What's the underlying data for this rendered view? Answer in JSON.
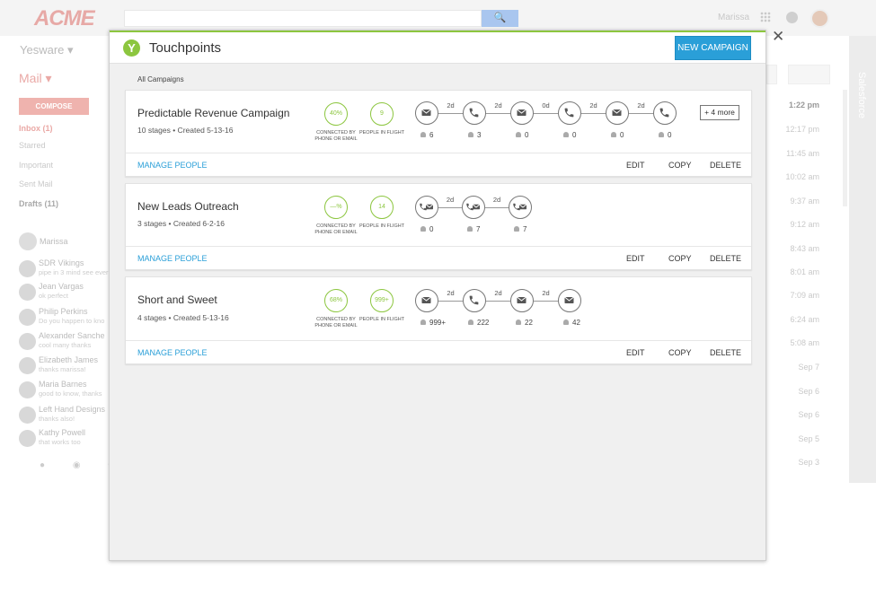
{
  "gmail": {
    "brand": "ACME",
    "search_button": "🔍",
    "user_name": "Marissa",
    "yesware_label": "Yesware ▾",
    "mail_label": "Mail ▾",
    "compose": "COMPOSE",
    "nav": [
      "Inbox (1)",
      "Starred",
      "Important",
      "Sent Mail",
      "Drafts (11)"
    ],
    "chat_user": "Marissa",
    "contacts": [
      {
        "name": "SDR Vikings",
        "snippet": "pipe in 3 mind see ever"
      },
      {
        "name": "Jean Vargas",
        "snippet": "ok perfect"
      },
      {
        "name": "Philip Perkins",
        "snippet": "Do you happen to kno"
      },
      {
        "name": "Alexander Sanche",
        "snippet": "cool many thanks"
      },
      {
        "name": "Elizabeth James",
        "snippet": "thanks marissa!"
      },
      {
        "name": "Maria Barnes",
        "snippet": "good to know, thanks"
      },
      {
        "name": "Left Hand Designs",
        "snippet": "thanks also!"
      },
      {
        "name": "Kathy Powell",
        "snippet": "that works too"
      }
    ],
    "times": [
      "1:22 pm",
      "12:17 pm",
      "11:45 am",
      "10:02 am",
      "9:37 am",
      "9:12 am",
      "8:43 am",
      "8:01 am",
      "7:09 am",
      "6:24 am",
      "5:08 am",
      "Sep 7",
      "Sep 6",
      "Sep 6",
      "Sep 5",
      "Sep 3"
    ],
    "side_panel_label": "Salesforce"
  },
  "modal": {
    "title": "Touchpoints",
    "new_campaign": "NEW CAMPAIGN",
    "all_campaigns": "All Campaigns",
    "close": "✕"
  },
  "labels": {
    "connected": "CONNECTED by PHONE or EMAIL",
    "in_flight": "PEOPLE IN FLIGHT",
    "manage_people": "MANAGE PEOPLE",
    "edit": "EDIT",
    "copy": "COPY",
    "delete": "DELETE"
  },
  "campaigns": [
    {
      "name": "Predictable Revenue Campaign",
      "meta": "10 stages  •  Created 5-13-16",
      "connected": "40%",
      "in_flight": "9",
      "steps": [
        {
          "type": "email",
          "count": "6"
        },
        {
          "type": "phone",
          "count": "3"
        },
        {
          "type": "email",
          "count": "0"
        },
        {
          "type": "phone",
          "count": "0"
        },
        {
          "type": "email",
          "count": "0"
        },
        {
          "type": "phone",
          "count": "0"
        }
      ],
      "delays": [
        "",
        "2d",
        "2d",
        "0d",
        "2d",
        "2d"
      ],
      "more": "+ 4 more"
    },
    {
      "name": "New Leads Outreach",
      "meta": "3 stages  •  Created 6-2-16",
      "connected": "—%",
      "in_flight": "14",
      "steps": [
        {
          "type": "both",
          "count": "0"
        },
        {
          "type": "both",
          "count": "7"
        },
        {
          "type": "both",
          "count": "7"
        }
      ],
      "delays": [
        "",
        "2d",
        "2d"
      ]
    },
    {
      "name": "Short and Sweet",
      "meta": "4 stages  •  Created 5-13-16",
      "connected": "68%",
      "in_flight": "999+",
      "steps": [
        {
          "type": "email",
          "count": "999+"
        },
        {
          "type": "phone",
          "count": "222"
        },
        {
          "type": "email",
          "count": "22"
        },
        {
          "type": "email",
          "count": "42"
        }
      ],
      "delays": [
        "",
        "2d",
        "2d",
        "2d"
      ]
    }
  ]
}
